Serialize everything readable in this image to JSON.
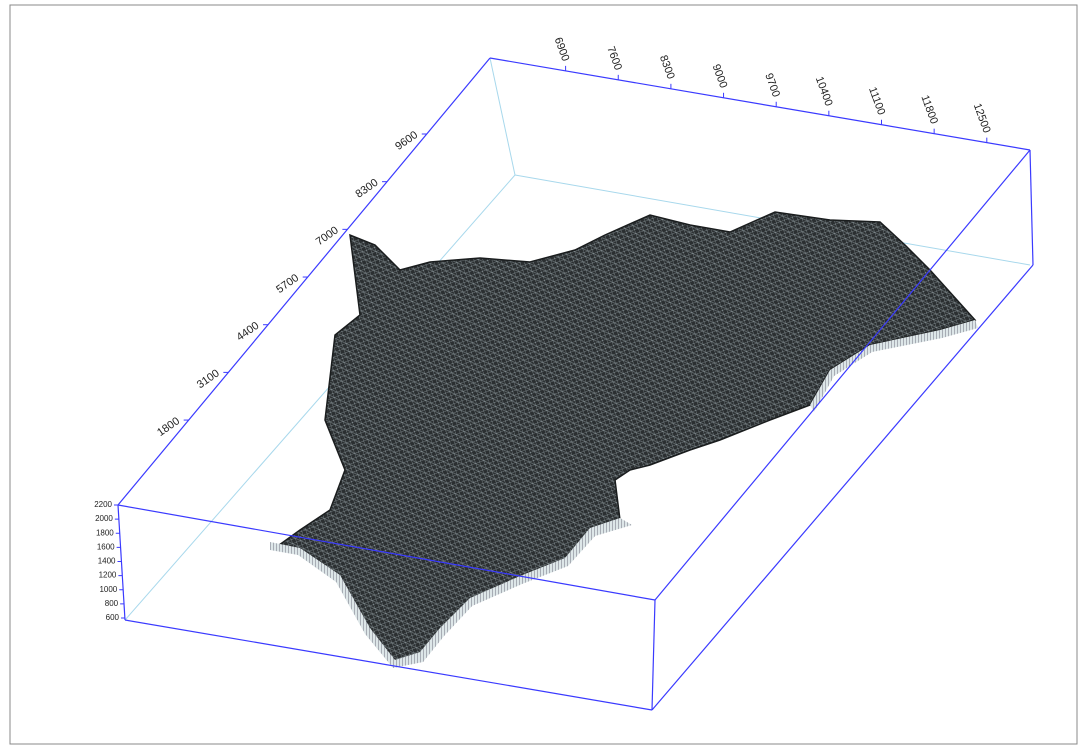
{
  "axes": {
    "x_labels": [
      "6900",
      "7600",
      "8300",
      "9000",
      "9700",
      "10400",
      "11100",
      "11800",
      "12500"
    ],
    "y_labels": [
      "9600",
      "8300",
      "7000",
      "5700",
      "4400",
      "3100",
      "1800"
    ],
    "z_labels": [
      "2200",
      "2000",
      "1800",
      "1600",
      "1400",
      "1200",
      "1000",
      "800",
      "600"
    ]
  }
}
